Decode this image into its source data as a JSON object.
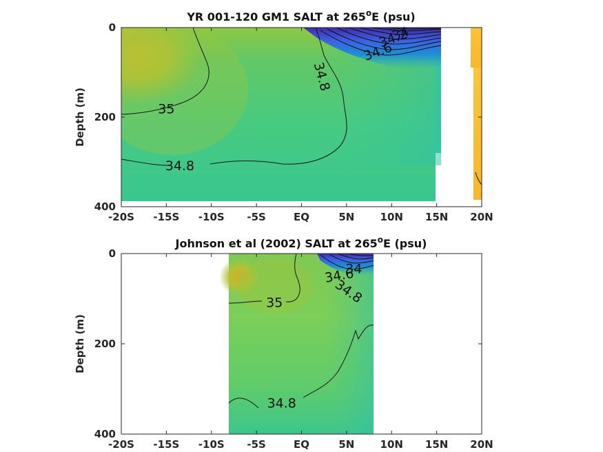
{
  "chart_data": [
    {
      "type": "heatmap",
      "title": "YR 001-120 GM1 SALT at 265",
      "title_sup": "o",
      "title_tail": "E (psu)",
      "ylabel": "Depth (m)",
      "xlim": [
        -20,
        20
      ],
      "ylim": [
        400,
        0
      ],
      "x_ticks": [
        -20,
        -15,
        -10,
        -5,
        0,
        5,
        10,
        15,
        20
      ],
      "x_tick_labels": [
        "-20S",
        "-15S",
        "-10S",
        "-5S",
        "EQ",
        "5N",
        "10N",
        "15N",
        "20N"
      ],
      "y_ticks": [
        0,
        200,
        400
      ],
      "y_tick_labels": [
        "0",
        "200",
        "400"
      ],
      "data_extent": {
        "lat": [
          -20,
          15.3
        ],
        "depth_max": 390
      },
      "contour_labels": [
        {
          "text": "35",
          "lat": -15,
          "depth": 183
        },
        {
          "text": "34.8",
          "lat": -13.5,
          "depth": 310
        },
        {
          "text": "34.8",
          "lat": 2.2,
          "depth": 110
        },
        {
          "text": "34.6",
          "lat": 8.5,
          "depth": 55
        },
        {
          "text": "34.2",
          "lat": 10.2,
          "depth": 25
        },
        {
          "text": "34",
          "lat": 11,
          "depth": 15
        }
      ],
      "colors": {
        "high": "#c8be2c",
        "mid": "#44c98e",
        "low": "#3e2ca8"
      }
    },
    {
      "type": "heatmap",
      "title": "Johnson et al (2002) SALT at 265",
      "title_sup": "o",
      "title_tail": "E (psu)",
      "ylabel": "Depth (m)",
      "xlim": [
        -20,
        20
      ],
      "ylim": [
        400,
        0
      ],
      "x_ticks": [
        -20,
        -15,
        -10,
        -5,
        0,
        5,
        10,
        15,
        20
      ],
      "x_tick_labels": [
        "-20S",
        "-15S",
        "-10S",
        "-5S",
        "EQ",
        "5N",
        "10N",
        "15N",
        "20N"
      ],
      "y_ticks": [
        0,
        200,
        400
      ],
      "y_tick_labels": [
        "0",
        "200",
        "400"
      ],
      "data_extent": {
        "lat": [
          -8,
          8
        ],
        "depth_max": 400
      },
      "contour_labels": [
        {
          "text": "35",
          "lat": -3,
          "depth": 110
        },
        {
          "text": "34.8",
          "lat": -2.2,
          "depth": 333
        },
        {
          "text": "34.6",
          "lat": 4.2,
          "depth": 50
        },
        {
          "text": "34.8",
          "lat": 5.2,
          "depth": 85
        },
        {
          "text": "34",
          "lat": 5.8,
          "depth": 35
        }
      ],
      "colors": {
        "high": "#c8be2c",
        "mid": "#7ccf5a",
        "low": "#3e2ca8"
      }
    }
  ]
}
